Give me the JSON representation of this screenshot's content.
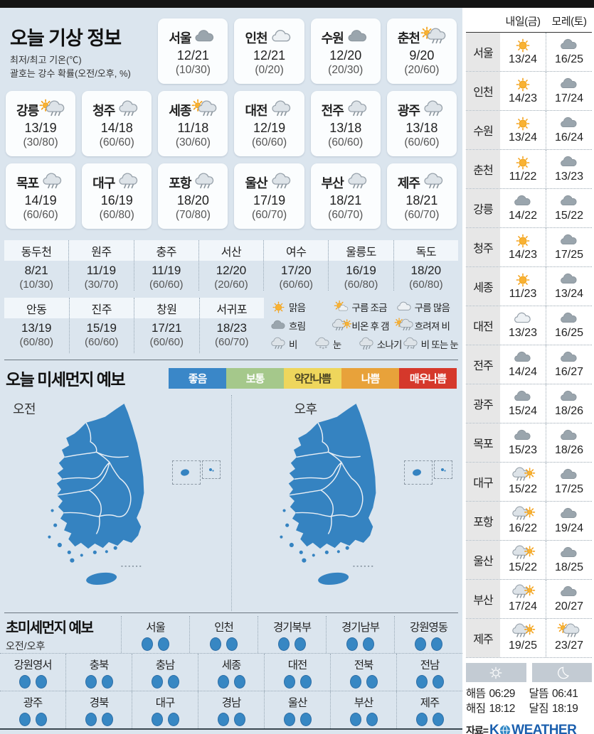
{
  "header": {
    "title": "오늘 기상 정보",
    "note1": "최저/최고 기온(℃)",
    "note2": "괄호는 강수 확률(오전/오후, %)"
  },
  "today_cards": {
    "row1": [
      {
        "city": "서울",
        "icon": "cloud",
        "temp": "12/21",
        "prob": "(10/30)"
      },
      {
        "city": "인천",
        "icon": "cloud-light",
        "temp": "12/21",
        "prob": "(0/20)"
      },
      {
        "city": "수원",
        "icon": "cloud",
        "temp": "12/20",
        "prob": "(20/30)"
      },
      {
        "city": "춘천",
        "icon": "sun-rain",
        "temp": "9/20",
        "prob": "(20/60)"
      }
    ],
    "row2": [
      {
        "city": "강릉",
        "icon": "sun-rain",
        "temp": "13/19",
        "prob": "(30/80)"
      },
      {
        "city": "청주",
        "icon": "rain",
        "temp": "14/18",
        "prob": "(60/60)"
      },
      {
        "city": "세종",
        "icon": "sun-rain",
        "temp": "11/18",
        "prob": "(30/60)"
      },
      {
        "city": "대전",
        "icon": "rain",
        "temp": "12/19",
        "prob": "(60/60)"
      },
      {
        "city": "전주",
        "icon": "rain",
        "temp": "13/18",
        "prob": "(60/60)"
      },
      {
        "city": "광주",
        "icon": "rain",
        "temp": "13/18",
        "prob": "(60/60)"
      }
    ],
    "row3": [
      {
        "city": "목포",
        "icon": "rain",
        "temp": "14/19",
        "prob": "(60/60)"
      },
      {
        "city": "대구",
        "icon": "rain",
        "temp": "16/19",
        "prob": "(60/80)"
      },
      {
        "city": "포항",
        "icon": "rain",
        "temp": "18/20",
        "prob": "(70/80)"
      },
      {
        "city": "울산",
        "icon": "rain",
        "temp": "17/19",
        "prob": "(60/70)"
      },
      {
        "city": "부산",
        "icon": "rain",
        "temp": "18/21",
        "prob": "(60/70)"
      },
      {
        "city": "제주",
        "icon": "rain",
        "temp": "18/21",
        "prob": "(60/70)"
      }
    ]
  },
  "extra_table": {
    "rowA": [
      {
        "city": "동두천",
        "temp": "8/21",
        "prob": "(10/30)"
      },
      {
        "city": "원주",
        "temp": "11/19",
        "prob": "(30/70)"
      },
      {
        "city": "충주",
        "temp": "11/19",
        "prob": "(60/60)"
      },
      {
        "city": "서산",
        "temp": "12/20",
        "prob": "(20/60)"
      },
      {
        "city": "여수",
        "temp": "17/20",
        "prob": "(60/60)"
      },
      {
        "city": "울릉도",
        "temp": "16/19",
        "prob": "(60/80)"
      },
      {
        "city": "독도",
        "temp": "18/20",
        "prob": "(60/80)"
      }
    ],
    "rowB": [
      {
        "city": "안동",
        "temp": "13/19",
        "prob": "(60/80)"
      },
      {
        "city": "진주",
        "temp": "15/19",
        "prob": "(60/60)"
      },
      {
        "city": "창원",
        "temp": "17/21",
        "prob": "(60/60)"
      },
      {
        "city": "서귀포",
        "temp": "18/23",
        "prob": "(60/70)"
      }
    ]
  },
  "weather_legend": {
    "rows": [
      [
        {
          "icon": "sun",
          "label": "맑음"
        },
        {
          "icon": "sun-cloud",
          "label": "구름 조금"
        },
        {
          "icon": "cloud-light",
          "label": "구름 많음"
        }
      ],
      [
        {
          "icon": "cloud",
          "label": "흐림"
        },
        {
          "icon": "rain-sun",
          "label": "비온 후 갬"
        },
        {
          "icon": "sun-rain",
          "label": "흐려져 비"
        }
      ],
      [
        {
          "icon": "rain",
          "label": "비"
        },
        {
          "icon": "snow",
          "label": "눈"
        },
        {
          "icon": "shower",
          "label": "소나기"
        },
        {
          "icon": "rain-snow",
          "label": "비 또는 눈"
        }
      ]
    ]
  },
  "dust": {
    "title": "오늘 미세먼지 예보",
    "levels": [
      {
        "label": "좋음",
        "bg": "#3a87c8",
        "fg": "#ffffff"
      },
      {
        "label": "보통",
        "bg": "#a5c88b",
        "fg": "#ffffff"
      },
      {
        "label": "약간나쁨",
        "bg": "#eed65c",
        "fg": "#4a4424"
      },
      {
        "label": "나쁨",
        "bg": "#e8a23a",
        "fg": "#ffffff"
      },
      {
        "label": "매우나쁨",
        "bg": "#d5382b",
        "fg": "#ffffff"
      }
    ],
    "maps": [
      {
        "label": "오전",
        "level": "좋음"
      },
      {
        "label": "오후",
        "level": "좋음"
      }
    ]
  },
  "ultrafine": {
    "title": "초미세먼지 예보",
    "subtitle": "오전/오후",
    "dot_level": "좋음",
    "dot_color": "#3787c3",
    "rows": [
      [
        "서울",
        "인천",
        "경기북부",
        "경기남부",
        "강원영동"
      ],
      [
        "강원영서",
        "충북",
        "충남",
        "세종",
        "대전",
        "전북",
        "전남"
      ],
      [
        "광주",
        "경북",
        "대구",
        "경남",
        "울산",
        "부산",
        "제주"
      ]
    ]
  },
  "forecast_panel": {
    "col1": "내일(금)",
    "col2": "모레(토)",
    "rows": [
      {
        "city": "서울",
        "d1_icon": "sun",
        "d1": "13/24",
        "d2_icon": "cloud",
        "d2": "16/25"
      },
      {
        "city": "인천",
        "d1_icon": "sun",
        "d1": "14/23",
        "d2_icon": "cloud",
        "d2": "17/24"
      },
      {
        "city": "수원",
        "d1_icon": "sun",
        "d1": "13/24",
        "d2_icon": "cloud",
        "d2": "16/24"
      },
      {
        "city": "춘천",
        "d1_icon": "sun",
        "d1": "11/22",
        "d2_icon": "cloud",
        "d2": "13/23"
      },
      {
        "city": "강릉",
        "d1_icon": "cloud",
        "d1": "14/22",
        "d2_icon": "cloud",
        "d2": "15/22"
      },
      {
        "city": "청주",
        "d1_icon": "sun",
        "d1": "14/23",
        "d2_icon": "cloud",
        "d2": "17/25"
      },
      {
        "city": "세종",
        "d1_icon": "sun",
        "d1": "11/23",
        "d2_icon": "cloud",
        "d2": "13/24"
      },
      {
        "city": "대전",
        "d1_icon": "cloud-light",
        "d1": "13/23",
        "d2_icon": "cloud",
        "d2": "16/25"
      },
      {
        "city": "전주",
        "d1_icon": "cloud",
        "d1": "14/24",
        "d2_icon": "cloud",
        "d2": "16/27"
      },
      {
        "city": "광주",
        "d1_icon": "cloud",
        "d1": "15/24",
        "d2_icon": "cloud",
        "d2": "18/26"
      },
      {
        "city": "목포",
        "d1_icon": "cloud",
        "d1": "15/23",
        "d2_icon": "cloud",
        "d2": "18/26"
      },
      {
        "city": "대구",
        "d1_icon": "rain-sun",
        "d1": "15/22",
        "d2_icon": "cloud",
        "d2": "17/25"
      },
      {
        "city": "포항",
        "d1_icon": "rain-sun",
        "d1": "16/22",
        "d2_icon": "cloud",
        "d2": "19/24"
      },
      {
        "city": "울산",
        "d1_icon": "rain-sun",
        "d1": "15/22",
        "d2_icon": "cloud",
        "d2": "18/25"
      },
      {
        "city": "부산",
        "d1_icon": "rain-sun",
        "d1": "17/24",
        "d2_icon": "cloud",
        "d2": "20/27"
      },
      {
        "city": "제주",
        "d1_icon": "rain-sun",
        "d1": "19/25",
        "d2_icon": "sun-rain",
        "d2": "23/27"
      }
    ],
    "sun": {
      "rise_label": "해뜸",
      "rise": "06:29",
      "set_label": "해짐",
      "set": "18:12"
    },
    "moon": {
      "rise_label": "달뜸",
      "rise": "06:41",
      "set_label": "달짐",
      "set": "18:19"
    },
    "source_label": "자료=",
    "brand_k": "K",
    "brand_rest": "WEATHER"
  },
  "colors": {
    "background": "#dbe5ee",
    "map_blue": "#3583c1",
    "dot_blue": "#3787c3",
    "brand_blue": "#1b5fae"
  }
}
